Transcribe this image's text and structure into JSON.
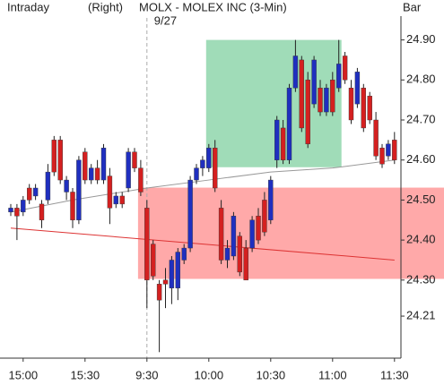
{
  "header": {
    "left": "Intraday",
    "mode": "(Right)",
    "title": "MOLX - MOLEX INC (3-Min)",
    "right": "Bar"
  },
  "chart_data": {
    "type": "candlestick",
    "date_break": {
      "label": "9/27",
      "index": 22
    },
    "categories": [
      null,
      null,
      "15:00",
      null,
      null,
      null,
      null,
      null,
      null,
      null,
      null,
      null,
      "15:30",
      null,
      null,
      null,
      null,
      null,
      null,
      null,
      null,
      null,
      "9:30",
      null,
      null,
      null,
      null,
      null,
      null,
      null,
      null,
      null,
      "10:00",
      null,
      null,
      null,
      null,
      null,
      null,
      null,
      null,
      null,
      "10:30",
      null,
      null,
      null,
      null,
      null,
      null,
      null,
      null,
      null,
      "11:00",
      null,
      null,
      null,
      null,
      null,
      null,
      null,
      null,
      null,
      "11:30"
    ],
    "open": [
      24.47,
      24.48,
      24.47,
      24.53,
      24.51,
      24.49,
      24.5,
      24.65,
      24.65,
      24.52,
      24.52,
      24.45,
      24.62,
      24.55,
      24.58,
      24.55,
      24.56,
      24.49,
      24.51,
      24.53,
      24.62,
      24.58,
      24.48,
      24.39,
      24.29,
      24.3,
      24.28,
      24.28,
      24.35,
      24.38,
      24.55,
      24.58,
      24.58,
      24.63,
      24.48,
      24.35,
      24.36,
      24.41,
      24.38,
      24.38,
      24.46,
      24.5,
      24.45,
      24.6,
      24.68,
      24.6,
      24.78,
      24.85,
      24.8,
      24.74,
      24.78,
      24.72,
      24.8,
      24.78,
      24.86,
      24.78,
      24.74,
      24.78,
      24.76,
      24.7,
      24.63,
      24.61,
      24.65
    ],
    "high": [
      24.49,
      24.49,
      24.51,
      24.54,
      24.54,
      24.5,
      24.59,
      24.66,
      24.66,
      24.56,
      24.53,
      24.61,
      24.63,
      24.59,
      24.6,
      24.64,
      24.58,
      24.52,
      24.52,
      24.63,
      24.63,
      24.6,
      24.5,
      24.4,
      24.3,
      24.33,
      24.36,
      24.38,
      24.39,
      24.56,
      24.59,
      24.61,
      24.64,
      24.65,
      24.5,
      24.4,
      24.47,
      24.42,
      24.4,
      24.46,
      24.48,
      24.52,
      24.56,
      24.71,
      24.7,
      24.79,
      24.9,
      24.86,
      24.82,
      24.86,
      24.8,
      24.79,
      24.82,
      24.9,
      24.87,
      24.8,
      24.83,
      24.79,
      24.77,
      24.72,
      24.64,
      24.65,
      24.67
    ],
    "low": [
      24.46,
      24.4,
      24.46,
      24.49,
      24.5,
      24.43,
      24.49,
      24.56,
      24.54,
      24.5,
      24.43,
      24.44,
      24.54,
      24.54,
      24.54,
      24.54,
      24.44,
      24.48,
      24.48,
      24.52,
      24.57,
      24.51,
      24.23,
      24.3,
      24.12,
      24.23,
      24.24,
      24.25,
      24.34,
      24.37,
      24.54,
      24.56,
      24.57,
      24.52,
      24.34,
      24.33,
      24.35,
      24.31,
      24.3,
      24.37,
      24.39,
      24.41,
      24.44,
      24.58,
      24.59,
      24.59,
      24.77,
      24.67,
      24.63,
      24.73,
      24.71,
      24.71,
      24.71,
      24.77,
      24.79,
      24.69,
      24.73,
      24.67,
      24.69,
      24.6,
      24.58,
      24.6,
      24.59
    ],
    "close": [
      24.48,
      24.46,
      24.5,
      24.5,
      24.53,
      24.45,
      24.57,
      24.57,
      24.55,
      24.55,
      24.45,
      24.6,
      24.55,
      24.58,
      24.55,
      24.63,
      24.48,
      24.51,
      24.49,
      24.62,
      24.58,
      24.52,
      24.3,
      24.31,
      24.25,
      24.29,
      24.35,
      24.37,
      24.38,
      24.55,
      24.58,
      24.6,
      24.63,
      24.53,
      24.35,
      24.38,
      24.46,
      24.32,
      24.3,
      24.45,
      24.4,
      24.42,
      24.55,
      24.7,
      24.6,
      24.78,
      24.86,
      24.68,
      24.64,
      24.85,
      24.72,
      24.78,
      24.72,
      24.84,
      24.8,
      24.7,
      24.82,
      24.68,
      24.7,
      24.61,
      24.59,
      24.64,
      24.6
    ],
    "up_color": "#1f2fbf",
    "down_color": "#d42020",
    "zones": [
      {
        "color": "#8fd6ab",
        "ylim": [
          24.582,
          24.9
        ],
        "start": 32,
        "end": 53,
        "extend_right": false
      },
      {
        "color": "#ff9a9a",
        "ylim": [
          24.303,
          24.531
        ],
        "start": 21,
        "end": 62,
        "extend_right": true
      }
    ],
    "lines": [
      {
        "color": "#999999",
        "x": [
          0,
          10,
          22,
          32,
          42,
          52,
          62
        ],
        "values": [
          24.47,
          24.5,
          24.53,
          24.55,
          24.57,
          24.58,
          24.6
        ]
      },
      {
        "color": "#dd3333",
        "x": [
          0,
          62
        ],
        "values": [
          24.43,
          24.35
        ]
      }
    ],
    "ylim": [
      24.105,
      24.955
    ],
    "yticks": [
      24.21,
      {
        "value": 24.3,
        "label": "24.30"
      },
      {
        "value": 24.4,
        "label": "24.40"
      },
      {
        "value": 24.5,
        "label": "24.50"
      },
      {
        "value": 24.6,
        "label": "24.60"
      },
      {
        "value": 24.7,
        "label": "24.70"
      },
      {
        "value": 24.8,
        "label": "24.80"
      },
      {
        "value": 24.9,
        "label": "24.90"
      }
    ]
  }
}
